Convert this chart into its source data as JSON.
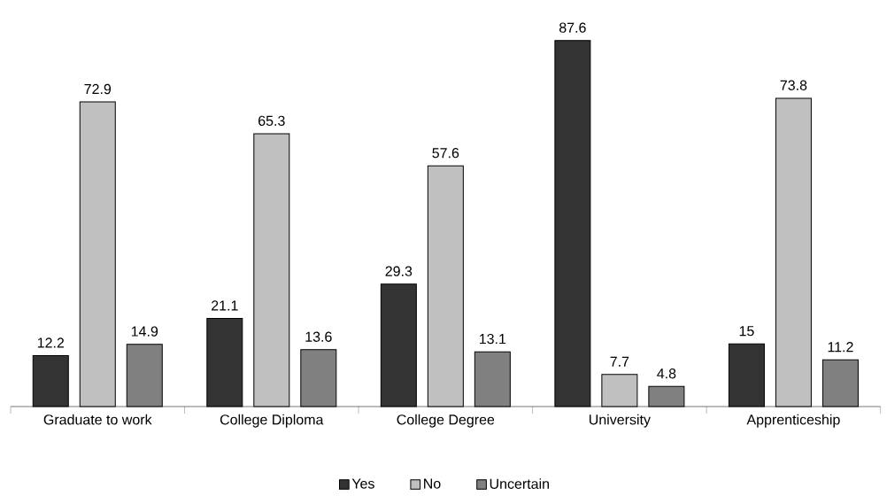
{
  "chart_data": {
    "type": "bar",
    "categories": [
      "Graduate to work",
      "College Diploma",
      "College Degree",
      "University",
      "Apprenticeship"
    ],
    "series": [
      {
        "name": "Yes",
        "color": "#333333",
        "values": [
          12.2,
          21.1,
          29.3,
          87.6,
          15
        ]
      },
      {
        "name": "No",
        "color": "#c0c0c0",
        "values": [
          72.9,
          65.3,
          57.6,
          7.7,
          73.8
        ]
      },
      {
        "name": "Uncertain",
        "color": "#808080",
        "values": [
          14.9,
          13.6,
          13.1,
          4.8,
          11.2
        ]
      }
    ],
    "data_labels": true,
    "legend": "bottom"
  }
}
